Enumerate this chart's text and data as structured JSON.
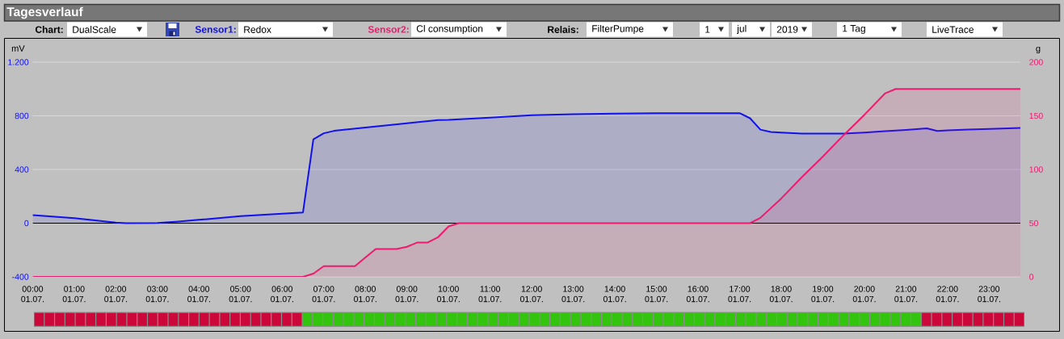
{
  "chart_data": [
    {
      "type": "area",
      "title": "Tagesverlauf",
      "ylabel": "mV",
      "y2label": "g",
      "annotations": [
        "Chart:",
        "DualScale",
        "Sensor1:",
        "Redox",
        "Sensor2:",
        "Cl consumption",
        "Relais:",
        "FilterPumpe",
        "1",
        "jul",
        "2019",
        "1 Tag",
        "LiveTrace"
      ],
      "xlim": [
        "2019-07-01T00:00",
        "2019-07-01T23:45"
      ],
      "xticks": [
        {
          "value": "2019-07-01T00:00",
          "label": "00:00 01.07."
        },
        {
          "value": "2019-07-01T01:00",
          "label": "01:00 01.07."
        },
        {
          "value": "2019-07-01T02:00",
          "label": "02:00 01.07."
        },
        {
          "value": "2019-07-01T03:00",
          "label": "03:00 01.07."
        },
        {
          "value": "2019-07-01T04:00",
          "label": "04:00 01.07."
        },
        {
          "value": "2019-07-01T05:00",
          "label": "05:00 01.07."
        },
        {
          "value": "2019-07-01T06:00",
          "label": "06:00 01.07."
        },
        {
          "value": "2019-07-01T07:00",
          "label": "07:00 01.07."
        },
        {
          "value": "2019-07-01T08:00",
          "label": "08:00 01.07."
        },
        {
          "value": "2019-07-01T09:00",
          "label": "09:00 01.07."
        },
        {
          "value": "2019-07-01T10:00",
          "label": "10:00 01.07."
        },
        {
          "value": "2019-07-01T11:00",
          "label": "11:00 01.07."
        },
        {
          "value": "2019-07-01T12:00",
          "label": "12:00 01.07."
        },
        {
          "value": "2019-07-01T13:00",
          "label": "13:00 01.07."
        },
        {
          "value": "2019-07-01T14:00",
          "label": "14:00 01.07."
        },
        {
          "value": "2019-07-01T15:00",
          "label": "15:00 01.07."
        },
        {
          "value": "2019-07-01T16:00",
          "label": "16:00 01.07."
        },
        {
          "value": "2019-07-01T17:00",
          "label": "17:00 01.07."
        },
        {
          "value": "2019-07-01T18:00",
          "label": "18:00 01.07."
        },
        {
          "value": "2019-07-01T19:00",
          "label": "19:00 01.07."
        },
        {
          "value": "2019-07-01T20:00",
          "label": "20:00 01.07."
        },
        {
          "value": "2019-07-01T21:00",
          "label": "21:00 01.07."
        },
        {
          "value": "2019-07-01T22:00",
          "label": "22:00 01.07."
        },
        {
          "value": "2019-07-01T23:00",
          "label": "23:00 01.07."
        }
      ],
      "ylim": [
        -400,
        1200
      ],
      "yticks": [
        -400,
        0,
        400,
        800,
        {
          "value": 1200,
          "label": "1.200"
        }
      ],
      "y2lim": [
        0,
        200
      ],
      "y2ticks": [
        0,
        50,
        100,
        150,
        200
      ],
      "grid": "y",
      "ref_lines": [
        {
          "axis": "y",
          "value": 0,
          "color": "#000000"
        }
      ],
      "series": [
        {
          "color": "#1111ee",
          "x": [
            "2019-07-01T00:00",
            "2019-07-01T01:00",
            "2019-07-01T02:00",
            "2019-07-01T02:15",
            "2019-07-01T03:00",
            "2019-07-01T03:30",
            "2019-07-01T04:00",
            "2019-07-01T05:00",
            "2019-07-01T05:30",
            "2019-07-01T06:00",
            "2019-07-01T06:30",
            "2019-07-01T06:45",
            "2019-07-01T07:00",
            "2019-07-01T07:15",
            "2019-07-01T08:00",
            "2019-07-01T09:00",
            "2019-07-01T09:45",
            "2019-07-01T10:00",
            "2019-07-01T11:00",
            "2019-07-01T12:00",
            "2019-07-01T13:00",
            "2019-07-01T14:00",
            "2019-07-01T15:00",
            "2019-07-01T16:00",
            "2019-07-01T17:00",
            "2019-07-01T17:15",
            "2019-07-01T17:30",
            "2019-07-01T17:45",
            "2019-07-01T18:00",
            "2019-07-01T18:30",
            "2019-07-01T19:00",
            "2019-07-01T19:30",
            "2019-07-01T20:00",
            "2019-07-01T20:30",
            "2019-07-01T21:00",
            "2019-07-01T21:30",
            "2019-07-01T21:45",
            "2019-07-01T22:00",
            "2019-07-01T22:30",
            "2019-07-01T23:00",
            "2019-07-01T23:45"
          ],
          "values": [
            60,
            37,
            5,
            0,
            2,
            12,
            25,
            52,
            62,
            70,
            80,
            625,
            670,
            688,
            712,
            745,
            768,
            770,
            787,
            805,
            812,
            817,
            820,
            820,
            820,
            782,
            697,
            680,
            675,
            667,
            667,
            667,
            675,
            685,
            695,
            707,
            687,
            692,
            697,
            702,
            710
          ]
        },
        {
          "color": "#ee1a6e",
          "axis": "y2",
          "x": [
            "2019-07-01T00:00",
            "2019-07-01T06:30",
            "2019-07-01T06:45",
            "2019-07-01T07:00",
            "2019-07-01T07:45",
            "2019-07-01T08:00",
            "2019-07-01T08:15",
            "2019-07-01T08:45",
            "2019-07-01T09:00",
            "2019-07-01T09:15",
            "2019-07-01T09:30",
            "2019-07-01T09:45",
            "2019-07-01T10:00",
            "2019-07-01T10:15",
            "2019-07-01T17:15",
            "2019-07-01T17:30",
            "2019-07-01T17:45",
            "2019-07-01T18:00",
            "2019-07-01T18:30",
            "2019-07-01T19:00",
            "2019-07-01T19:30",
            "2019-07-01T20:00",
            "2019-07-01T20:30",
            "2019-07-01T20:45",
            "2019-07-01T23:45"
          ],
          "values": [
            0,
            0,
            3,
            10,
            10,
            18,
            26,
            26,
            28,
            32,
            32,
            37,
            47,
            50,
            50,
            55,
            64,
            73,
            93,
            112,
            132,
            151,
            171,
            175,
            175
          ]
        }
      ]
    },
    {
      "type": "other",
      "categories": [
        null,
        null,
        null,
        null,
        null,
        null,
        null,
        null,
        null,
        null,
        null,
        null,
        null,
        null,
        null,
        null,
        null,
        null,
        null,
        null,
        null,
        null,
        null,
        null,
        null,
        null,
        null,
        null,
        null,
        null,
        null,
        null,
        null,
        null,
        null,
        null,
        null,
        null,
        null,
        null,
        null,
        null,
        null,
        null,
        null,
        null,
        null,
        null,
        null,
        null,
        null,
        null,
        null,
        null,
        null,
        null,
        null,
        null,
        null,
        null,
        null,
        null,
        null,
        null,
        null,
        null,
        null,
        null,
        null,
        null,
        null,
        null,
        null,
        null,
        null,
        null,
        null,
        null,
        null,
        null,
        null,
        null,
        null,
        null,
        null,
        null,
        null,
        null,
        null,
        null,
        null,
        null,
        null,
        null,
        null,
        null
      ],
      "colors": [
        "#cc083a",
        "#cc083a",
        "#cc083a",
        "#cc083a",
        "#cc083a",
        "#cc083a",
        "#cc083a",
        "#cc083a",
        "#cc083a",
        "#cc083a",
        "#cc083a",
        "#cc083a",
        "#cc083a",
        "#cc083a",
        "#cc083a",
        "#cc083a",
        "#cc083a",
        "#cc083a",
        "#cc083a",
        "#cc083a",
        "#cc083a",
        "#cc083a",
        "#cc083a",
        "#cc083a",
        "#cc083a",
        "#cc083a",
        "#33c40e",
        "#33c40e",
        "#33c40e",
        "#33c40e",
        "#33c40e",
        "#33c40e",
        "#33c40e",
        "#33c40e",
        "#33c40e",
        "#33c40e",
        "#33c40e",
        "#33c40e",
        "#33c40e",
        "#33c40e",
        "#33c40e",
        "#33c40e",
        "#33c40e",
        "#33c40e",
        "#33c40e",
        "#33c40e",
        "#33c40e",
        "#33c40e",
        "#33c40e",
        "#33c40e",
        "#33c40e",
        "#33c40e",
        "#33c40e",
        "#33c40e",
        "#33c40e",
        "#33c40e",
        "#33c40e",
        "#33c40e",
        "#33c40e",
        "#33c40e",
        "#33c40e",
        "#33c40e",
        "#33c40e",
        "#33c40e",
        "#33c40e",
        "#33c40e",
        "#33c40e",
        "#33c40e",
        "#33c40e",
        "#33c40e",
        "#33c40e",
        "#33c40e",
        "#33c40e",
        "#33c40e",
        "#33c40e",
        "#33c40e",
        "#33c40e",
        "#33c40e",
        "#33c40e",
        "#33c40e",
        "#33c40e",
        "#33c40e",
        "#33c40e",
        "#33c40e",
        "#33c40e",
        "#33c40e",
        "#cc083a",
        "#cc083a",
        "#cc083a",
        "#cc083a",
        "#cc083a",
        "#cc083a",
        "#cc083a",
        "#cc083a",
        "#cc083a",
        "#cc083a"
      ]
    }
  ]
}
